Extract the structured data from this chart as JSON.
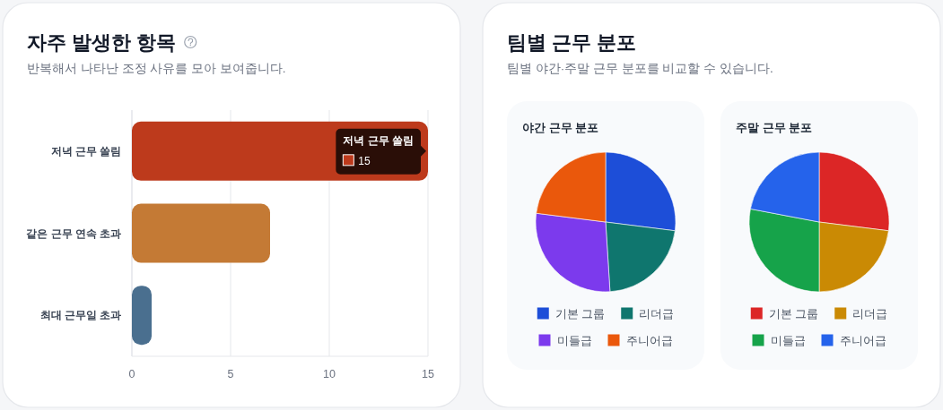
{
  "chart_data": [
    {
      "type": "bar",
      "orientation": "horizontal",
      "title": "자주 발생한 항목",
      "subtitle": "반복해서 나타난 조정 사유를 모아 보여줍니다.",
      "categories": [
        "저녁 근무 쏠림",
        "같은 근무 연속 초과",
        "최대 근무일 초과"
      ],
      "values": [
        15,
        7,
        1
      ],
      "colors": [
        "#bd3a1c",
        "#c47a35",
        "#4a6f8f"
      ],
      "xlim": [
        0,
        15
      ],
      "xticks": [
        0,
        5,
        10,
        15
      ],
      "grid": "x",
      "value_labels": [
        "15",
        null,
        null
      ],
      "annotations": [
        {
          "text": "저녁 근무 쏠림",
          "x": 15,
          "y": "저녁 근무 쏠림"
        }
      ]
    },
    {
      "type": "other",
      "title": "팀별 근무 분포",
      "subtitle": "팀별 야간·주말 근무 분포를 비교할 수 있습니다."
    },
    {
      "type": "pie",
      "title": "야간 근무 분포",
      "categories": [
        "기본 그룹",
        "리더급",
        "미들급",
        "주니어급"
      ],
      "values": [
        27,
        22,
        28,
        23
      ],
      "colors": [
        "#1d4ed8",
        "#0f766e",
        "#7c3aed",
        "#ea580c"
      ],
      "legend": "bottom"
    },
    {
      "type": "pie",
      "title": "주말 근무 분포",
      "categories": [
        "기본 그룹",
        "리더급",
        "미들급",
        "주니어급"
      ],
      "values": [
        27,
        23,
        28,
        22
      ],
      "colors": [
        "#dc2626",
        "#ca8a04",
        "#16a34a",
        "#2563eb"
      ],
      "legend": "bottom"
    }
  ]
}
